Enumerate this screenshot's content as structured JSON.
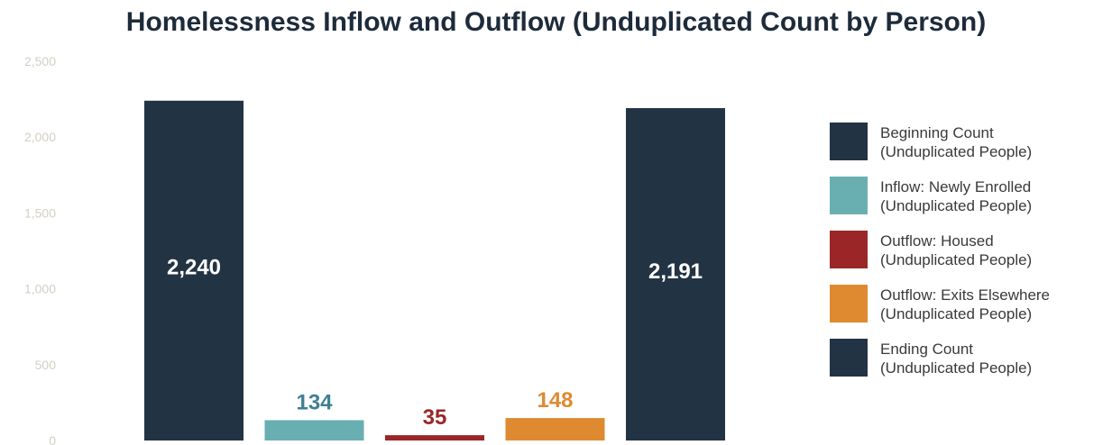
{
  "chart_data": {
    "type": "bar",
    "title": "Homelessness Inflow and Outflow (Unduplicated Count by Person)",
    "xlabel": "",
    "ylabel": "",
    "ylim": [
      0,
      2500
    ],
    "y_tick_labels": [
      "0",
      "500",
      "1,000",
      "1,500",
      "2,000",
      "2,500"
    ],
    "y_tick_values": [
      0,
      500,
      1000,
      1500,
      2000,
      2500
    ],
    "grid": false,
    "legend_position": "right",
    "bars": [
      {
        "value": 2240,
        "label": "2,240",
        "color": "#223444",
        "label_color": "#ffffff",
        "label_inside": true
      },
      {
        "value": 134,
        "label": "134",
        "color": "#69afb2",
        "label_color": "#3f7f94",
        "label_inside": false
      },
      {
        "value": 35,
        "label": "35",
        "color": "#9b2628",
        "label_color": "#9b2628",
        "label_inside": false
      },
      {
        "value": 148,
        "label": "148",
        "color": "#df8a30",
        "label_color": "#df8a30",
        "label_inside": false
      },
      {
        "value": 2191,
        "label": "2,191",
        "color": "#223444",
        "label_color": "#ffffff",
        "label_inside": true
      }
    ],
    "legend": [
      {
        "line1": "Beginning Count",
        "line2": "(Unduplicated People)",
        "color": "#223444"
      },
      {
        "line1": "Inflow: Newly Enrolled",
        "line2": "(Unduplicated People)",
        "color": "#69afb2"
      },
      {
        "line1": "Outflow: Housed",
        "line2": "(Unduplicated People)",
        "color": "#9b2628"
      },
      {
        "line1": "Outflow: Exits Elsewhere",
        "line2": "(Unduplicated People)",
        "color": "#df8a30"
      },
      {
        "line1": "Ending Count",
        "line2": "(Unduplicated People)",
        "color": "#223444"
      }
    ]
  }
}
